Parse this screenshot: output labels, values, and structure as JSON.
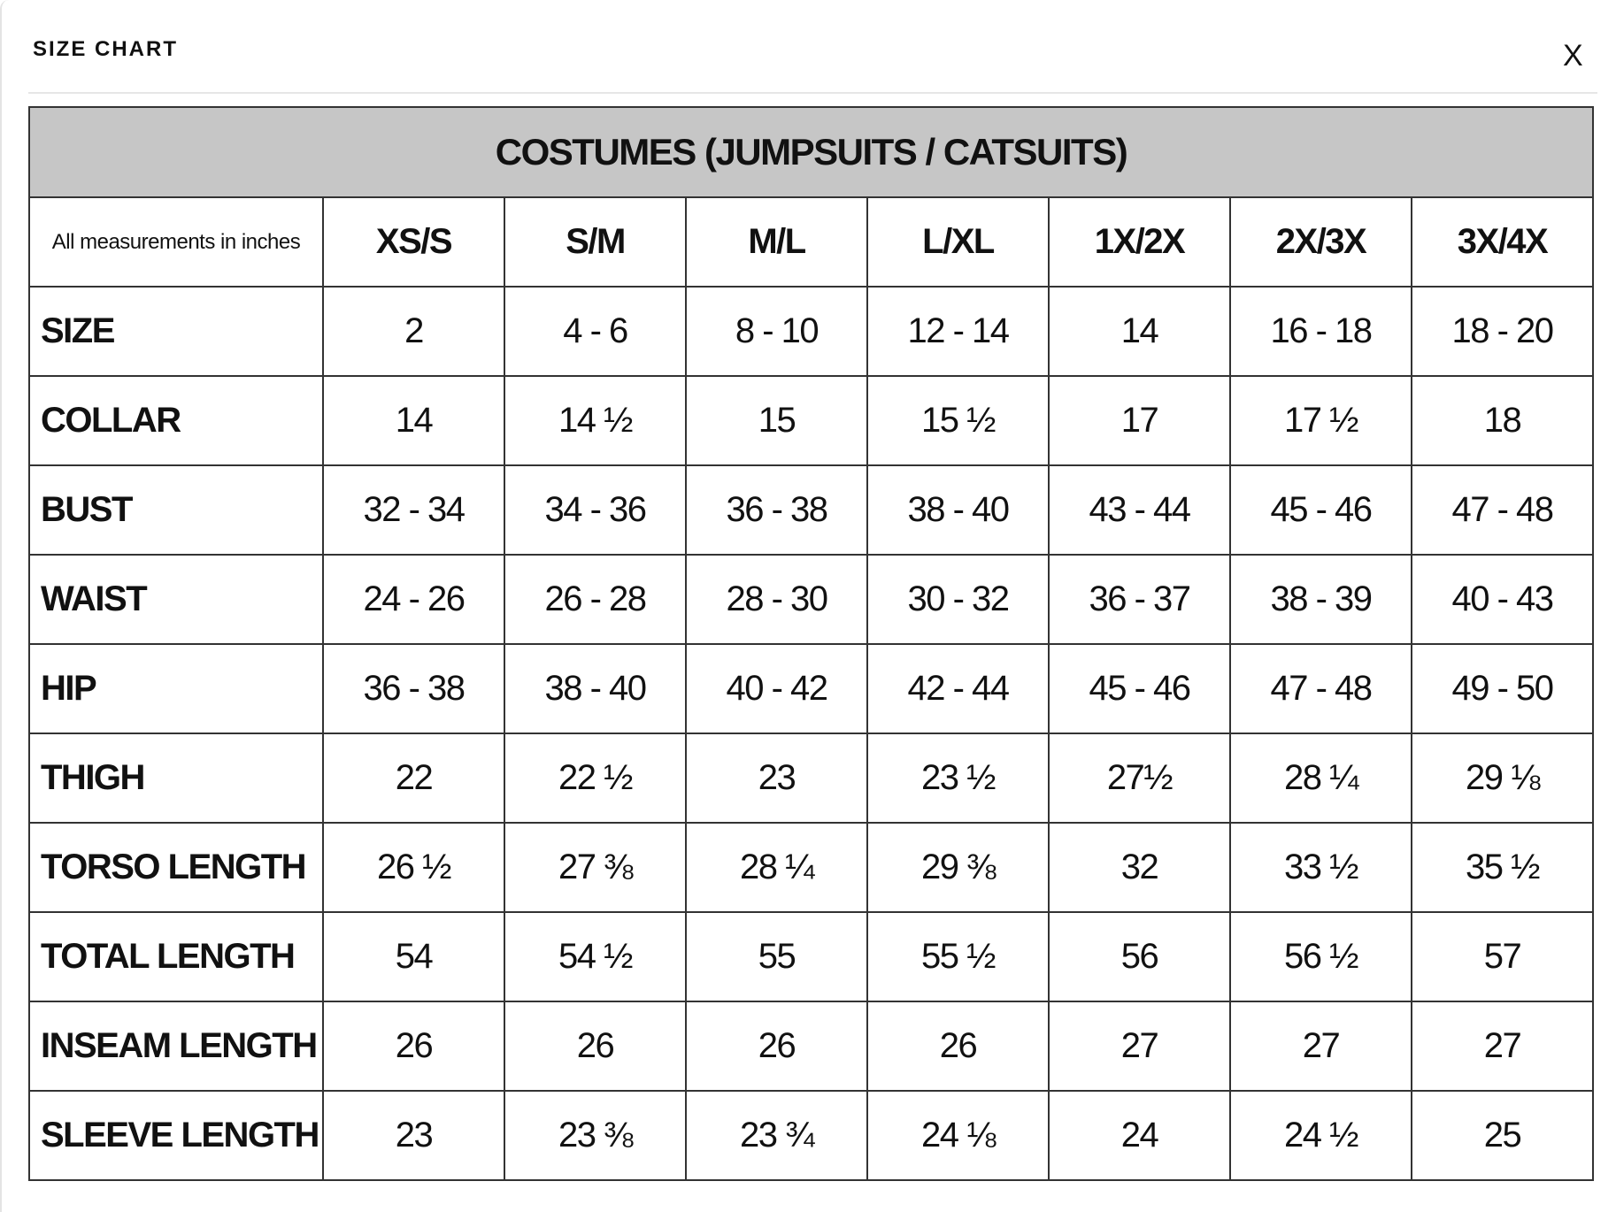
{
  "header": {
    "title": "SIZE CHART",
    "close": "X"
  },
  "table": {
    "title": "COSTUMES (JUMPSUITS / CATSUITS)",
    "note": "All measurements in inches",
    "columns": [
      "XS/S",
      "S/M",
      "M/L",
      "L/XL",
      "1X/2X",
      "2X/3X",
      "3X/4X"
    ],
    "rows": [
      {
        "label": "SIZE",
        "values": [
          "2",
          "4 - 6",
          "8 - 10",
          "12 - 14",
          "14",
          "16 - 18",
          "18 - 20"
        ]
      },
      {
        "label": "COLLAR",
        "values": [
          "14",
          "14 ½",
          "15",
          "15 ½",
          "17",
          "17 ½",
          "18"
        ]
      },
      {
        "label": "BUST",
        "values": [
          "32 - 34",
          "34 - 36",
          "36 - 38",
          "38 - 40",
          "43 - 44",
          "45 - 46",
          "47 - 48"
        ]
      },
      {
        "label": "WAIST",
        "values": [
          "24 - 26",
          "26 - 28",
          "28 - 30",
          "30 - 32",
          "36 - 37",
          "38 - 39",
          "40 - 43"
        ]
      },
      {
        "label": "HIP",
        "values": [
          "36 - 38",
          "38 - 40",
          "40 - 42",
          "42 - 44",
          "45 - 46",
          "47 - 48",
          "49 - 50"
        ]
      },
      {
        "label": "THIGH",
        "values": [
          "22",
          "22 ½",
          "23",
          "23 ½",
          "27½",
          "28 ¼",
          "29 ⅛"
        ]
      },
      {
        "label": "TORSO LENGTH",
        "values": [
          "26 ½",
          "27 ⅜",
          "28 ¼",
          "29 ⅜",
          "32",
          "33 ½",
          "35 ½"
        ]
      },
      {
        "label": "TOTAL LENGTH",
        "values": [
          "54",
          "54 ½",
          "55",
          "55 ½",
          "56",
          "56 ½",
          "57"
        ]
      },
      {
        "label": "INSEAM LENGTH",
        "values": [
          "26",
          "26",
          "26",
          "26",
          "27",
          "27",
          "27"
        ]
      },
      {
        "label": "SLEEVE LENGTH",
        "values": [
          "23",
          "23 ⅜",
          "23 ¾",
          "24 ⅛",
          "24",
          "24 ½",
          "25"
        ]
      }
    ]
  }
}
